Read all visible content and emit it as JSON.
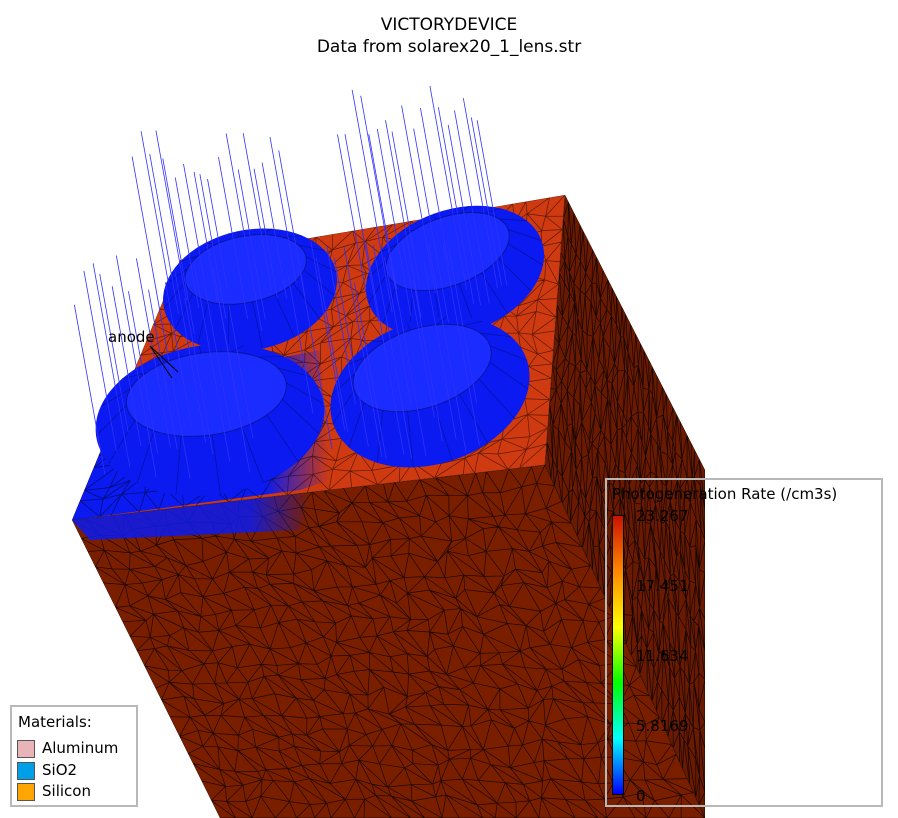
{
  "header": {
    "title": "VICTORYDEVICE",
    "subtitle": "Data from solarex20_1_lens.str"
  },
  "annotations": {
    "anode": "anode"
  },
  "colorbar": {
    "title": "Photogeneration Rate (/cm3s)",
    "ticks": [
      "23.267",
      "17.451",
      "11.634",
      "5.8169",
      "0"
    ],
    "colors": [
      "#cc1100",
      "#ff8800",
      "#ffff00",
      "#00ff00",
      "#00ffff",
      "#0000ff"
    ]
  },
  "materials": {
    "title": "Materials:",
    "items": [
      {
        "label": "Aluminum",
        "color": "#e8b4b8"
      },
      {
        "label": "SiO2",
        "color": "#00a0e8"
      },
      {
        "label": "Silicon",
        "color": "#ffa500"
      }
    ]
  },
  "scene_colors": {
    "front_face": "#7a1e00",
    "top_face": "#cf3a10",
    "side_face": "#6a1a00",
    "lens": "#0a1af0",
    "rays": "#3030ff",
    "mesh": "#000000"
  }
}
